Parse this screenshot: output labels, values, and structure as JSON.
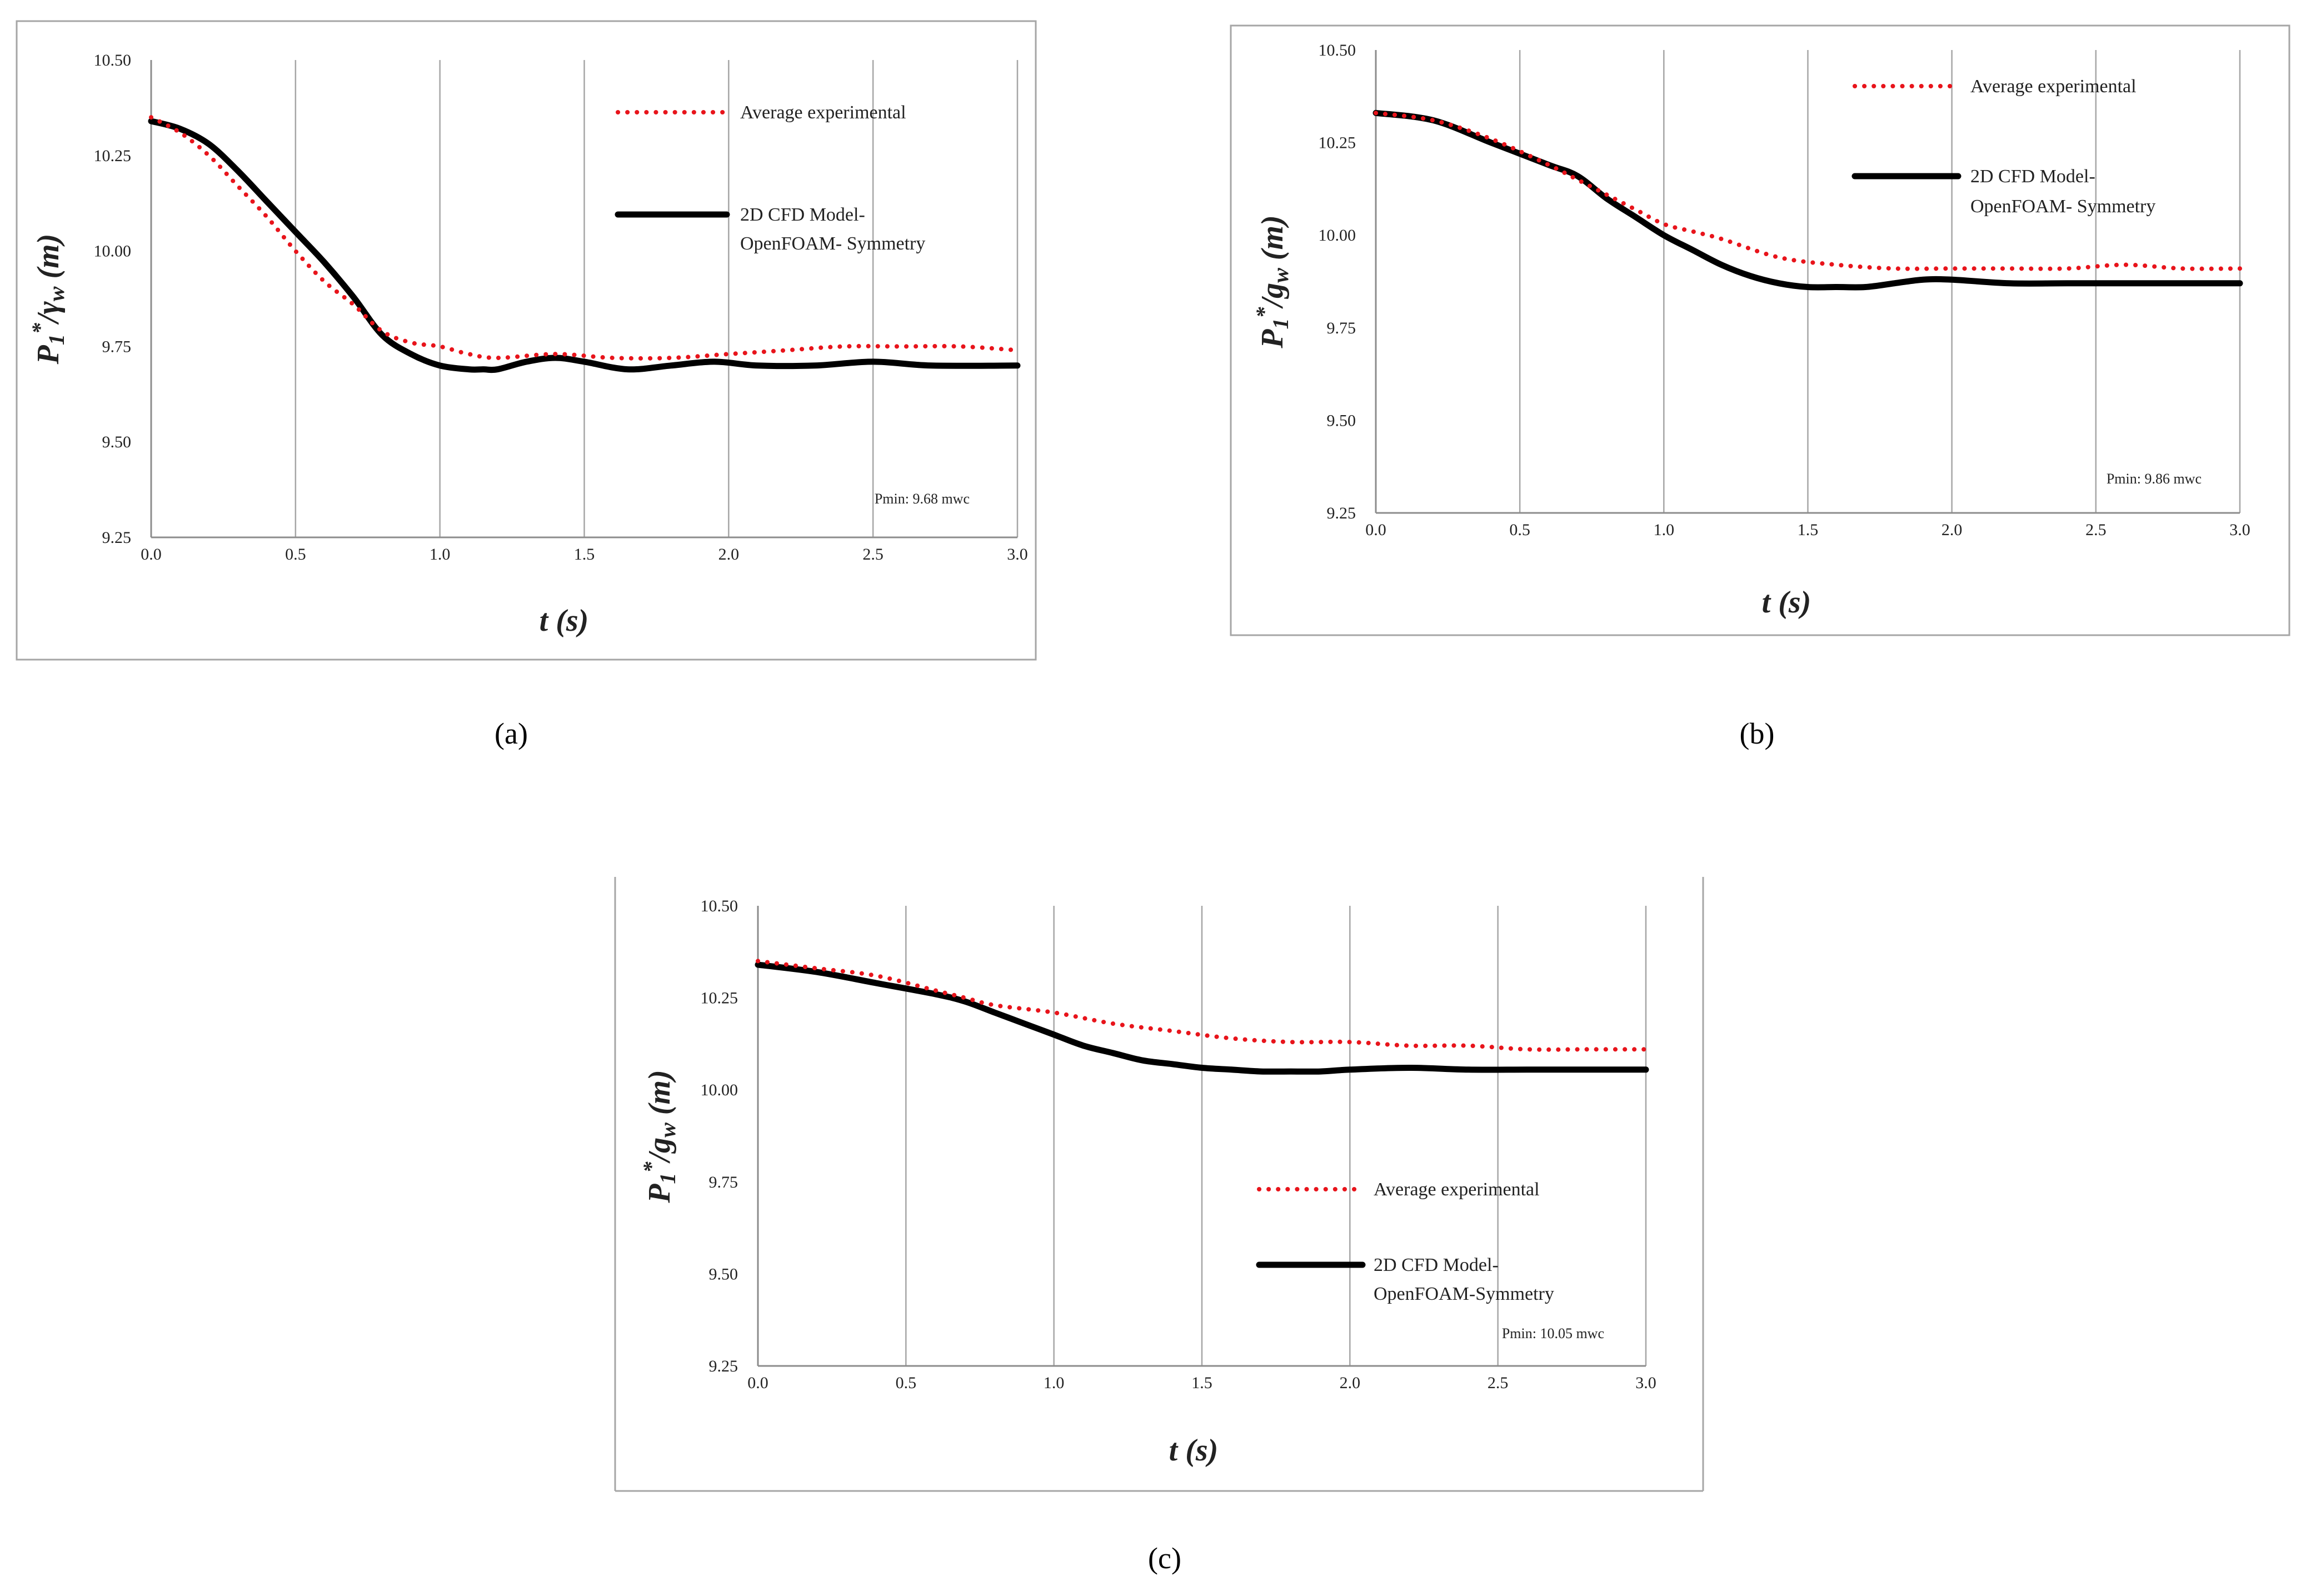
{
  "figure": {
    "panels": [
      {
        "caption": "(a)",
        "annotation": "Pmin: 9.68 mwc",
        "legend": {
          "experimental": [
            "Average experimental"
          ],
          "model": [
            "2D CFD Model-",
            "OpenFOAM- Symmetry"
          ]
        }
      },
      {
        "caption": "(b)",
        "annotation": "Pmin: 9.86 mwc",
        "legend": {
          "experimental": [
            "Average experimental"
          ],
          "model": [
            "2D CFD Model-",
            "OpenFOAM- Symmetry"
          ]
        }
      },
      {
        "caption": "(c)",
        "annotation": "Pmin: 10.05 mwc",
        "legend": {
          "experimental": [
            "Average experimental"
          ],
          "model": [
            "2D CFD Model-",
            "OpenFOAM-Symmetry"
          ]
        }
      }
    ]
  },
  "chart_data": [
    {
      "type": "line",
      "panel": "a",
      "title": "",
      "xlabel": "t (s)",
      "ylabel_main": "P",
      "ylabel_sub": "1",
      "ylabel_sup": "*",
      "ylabel_rest": "/γ",
      "ylabel_sub2": "w",
      "ylabel_unit": " (m)",
      "xlim": [
        0,
        3
      ],
      "ylim": [
        9.25,
        10.5
      ],
      "x_ticks": [
        0,
        0.5,
        1,
        1.5,
        2,
        2.5,
        3
      ],
      "x_tick_labels": [
        "0.0",
        "0.5",
        "1.0",
        "1.5",
        "2.0",
        "2.5",
        "3.0"
      ],
      "y_ticks": [
        9.25,
        9.5,
        9.75,
        10,
        10.25,
        10.5
      ],
      "y_tick_labels": [
        "9.25",
        "9.50",
        "9.75",
        "10.00",
        "10.25",
        "10.50"
      ],
      "grid": "vertical",
      "series": [
        {
          "name": "Average experimental",
          "style": "dotted",
          "color": "#e8141b",
          "x": [
            0,
            0.1,
            0.2,
            0.3,
            0.4,
            0.5,
            0.6,
            0.7,
            0.8,
            0.9,
            1.0,
            1.1,
            1.2,
            1.4,
            1.6,
            1.8,
            2.0,
            2.2,
            2.4,
            2.6,
            2.8,
            3.0
          ],
          "y": [
            10.35,
            10.31,
            10.25,
            10.17,
            10.09,
            10.0,
            9.92,
            9.86,
            9.79,
            9.76,
            9.75,
            9.73,
            9.72,
            9.73,
            9.72,
            9.72,
            9.73,
            9.74,
            9.75,
            9.75,
            9.75,
            9.74
          ]
        },
        {
          "name": "2D CFD Model- OpenFOAM- Symmetry",
          "style": "solid",
          "color": "#000000",
          "x": [
            0,
            0.1,
            0.2,
            0.3,
            0.4,
            0.5,
            0.6,
            0.7,
            0.8,
            0.9,
            1.0,
            1.1,
            1.15,
            1.2,
            1.3,
            1.4,
            1.5,
            1.65,
            1.8,
            1.95,
            2.1,
            2.3,
            2.5,
            2.7,
            3.0
          ],
          "y": [
            10.34,
            10.32,
            10.28,
            10.21,
            10.13,
            10.05,
            9.97,
            9.88,
            9.78,
            9.73,
            9.7,
            9.69,
            9.69,
            9.69,
            9.71,
            9.72,
            9.71,
            9.69,
            9.7,
            9.71,
            9.7,
            9.7,
            9.71,
            9.7,
            9.7
          ]
        }
      ]
    },
    {
      "type": "line",
      "panel": "b",
      "title": "",
      "xlabel": "t (s)",
      "ylabel_main": "P",
      "ylabel_sub": "1",
      "ylabel_sup": "*",
      "ylabel_rest": "/g",
      "ylabel_sub2": "w",
      "ylabel_unit": " (m)",
      "xlim": [
        0,
        3
      ],
      "ylim": [
        9.25,
        10.5
      ],
      "x_ticks": [
        0,
        0.5,
        1,
        1.5,
        2,
        2.5,
        3
      ],
      "x_tick_labels": [
        "0.0",
        "0.5",
        "1.0",
        "1.5",
        "2.0",
        "2.5",
        "3.0"
      ],
      "y_ticks": [
        9.25,
        9.5,
        9.75,
        10,
        10.25,
        10.5
      ],
      "y_tick_labels": [
        "9.25",
        "9.50",
        "9.75",
        "10.00",
        "10.25",
        "10.50"
      ],
      "grid": "vertical",
      "series": [
        {
          "name": "Average experimental",
          "style": "dotted",
          "color": "#e8141b",
          "x": [
            0,
            0.2,
            0.4,
            0.6,
            0.7,
            0.8,
            0.9,
            1.0,
            1.1,
            1.2,
            1.4,
            1.6,
            1.8,
            2.0,
            2.2,
            2.4,
            2.6,
            2.8,
            3.0
          ],
          "y": [
            10.33,
            10.31,
            10.26,
            10.19,
            10.15,
            10.11,
            10.07,
            10.03,
            10.01,
            9.99,
            9.94,
            9.92,
            9.91,
            9.91,
            9.91,
            9.91,
            9.92,
            9.91,
            9.91
          ]
        },
        {
          "name": "2D CFD Model- OpenFOAM- Symmetry",
          "style": "solid",
          "color": "#000000",
          "x": [
            0,
            0.2,
            0.4,
            0.6,
            0.7,
            0.8,
            0.9,
            1.0,
            1.1,
            1.2,
            1.3,
            1.4,
            1.5,
            1.6,
            1.7,
            1.8,
            1.9,
            2.0,
            2.2,
            2.4,
            2.6,
            2.8,
            3.0
          ],
          "y": [
            10.33,
            10.31,
            10.25,
            10.19,
            10.16,
            10.1,
            10.05,
            10.0,
            9.96,
            9.92,
            9.89,
            9.87,
            9.86,
            9.86,
            9.86,
            9.87,
            9.88,
            9.88,
            9.87,
            9.87,
            9.87,
            9.87,
            9.87
          ]
        }
      ]
    },
    {
      "type": "line",
      "panel": "c",
      "title": "",
      "xlabel": "t (s)",
      "ylabel_main": "P",
      "ylabel_sub": "1",
      "ylabel_sup": "*",
      "ylabel_rest": "/g",
      "ylabel_sub2": "w",
      "ylabel_unit": " (m)",
      "xlim": [
        0,
        3
      ],
      "ylim": [
        9.25,
        10.5
      ],
      "x_ticks": [
        0,
        0.5,
        1,
        1.5,
        2,
        2.5,
        3
      ],
      "x_tick_labels": [
        "0.0",
        "0.5",
        "1.0",
        "1.5",
        "2.0",
        "2.5",
        "3.0"
      ],
      "y_ticks": [
        9.25,
        9.5,
        9.75,
        10,
        10.25,
        10.5
      ],
      "y_tick_labels": [
        "9.25",
        "9.50",
        "9.75",
        "10.00",
        "10.25",
        "10.50"
      ],
      "grid": "vertical",
      "series": [
        {
          "name": "Average experimental",
          "style": "dotted",
          "color": "#e8141b",
          "x": [
            0,
            0.2,
            0.4,
            0.6,
            0.7,
            0.8,
            1.0,
            1.2,
            1.4,
            1.6,
            1.8,
            2.0,
            2.2,
            2.4,
            2.6,
            2.8,
            3.0
          ],
          "y": [
            10.35,
            10.33,
            10.31,
            10.27,
            10.25,
            10.23,
            10.21,
            10.18,
            10.16,
            10.14,
            10.13,
            10.13,
            10.12,
            10.12,
            10.11,
            10.11,
            10.11
          ]
        },
        {
          "name": "2D CFD Model- OpenFOAM-Symmetry",
          "style": "solid",
          "color": "#000000",
          "x": [
            0,
            0.2,
            0.4,
            0.6,
            0.7,
            0.8,
            0.9,
            1.0,
            1.1,
            1.2,
            1.3,
            1.4,
            1.5,
            1.6,
            1.7,
            1.8,
            1.9,
            2.0,
            2.2,
            2.4,
            2.6,
            2.8,
            3.0
          ],
          "y": [
            10.34,
            10.32,
            10.29,
            10.26,
            10.24,
            10.21,
            10.18,
            10.15,
            10.12,
            10.1,
            10.08,
            10.07,
            10.06,
            10.055,
            10.05,
            10.05,
            10.05,
            10.055,
            10.06,
            10.055,
            10.055,
            10.055,
            10.055
          ]
        }
      ]
    }
  ]
}
